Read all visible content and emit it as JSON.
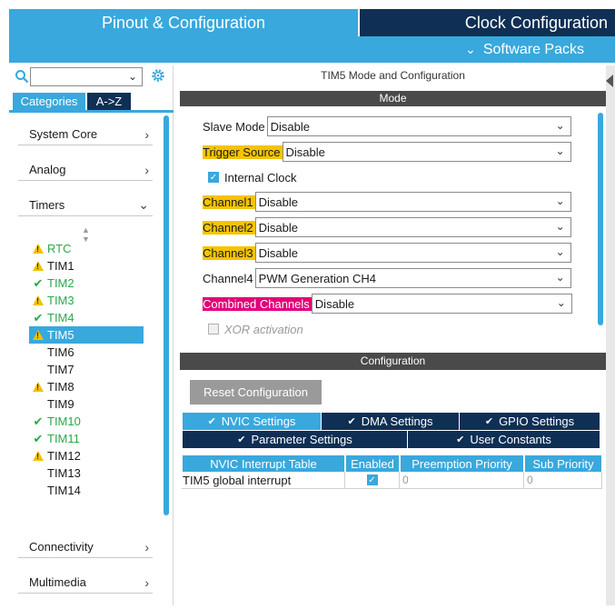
{
  "header": {
    "tab_pinout": "Pinout & Configuration",
    "tab_clock": "Clock Configuration",
    "software_packs": "Software Packs"
  },
  "left": {
    "search_value": "",
    "tab_categories": "Categories",
    "tab_az": "A->Z",
    "categories": [
      {
        "label": "System Core",
        "arrow": ">"
      },
      {
        "label": "Analog",
        "arrow": ">"
      },
      {
        "label": "Timers",
        "arrow": "v"
      },
      {
        "label": "Connectivity",
        "arrow": ">"
      },
      {
        "label": "Multimedia",
        "arrow": ">"
      }
    ],
    "timers": [
      {
        "label": "RTC",
        "status": "warn",
        "color": "green"
      },
      {
        "label": "TIM1",
        "status": "warn",
        "color": "black"
      },
      {
        "label": "TIM2",
        "status": "check",
        "color": "green"
      },
      {
        "label": "TIM3",
        "status": "warn",
        "color": "green"
      },
      {
        "label": "TIM4",
        "status": "check",
        "color": "green"
      },
      {
        "label": "TIM5",
        "status": "warn",
        "color": "selected"
      },
      {
        "label": "TIM6",
        "status": "none",
        "color": "black"
      },
      {
        "label": "TIM7",
        "status": "none",
        "color": "black"
      },
      {
        "label": "TIM8",
        "status": "warn",
        "color": "black"
      },
      {
        "label": "TIM9",
        "status": "none",
        "color": "black"
      },
      {
        "label": "TIM10",
        "status": "check",
        "color": "green"
      },
      {
        "label": "TIM11",
        "status": "check",
        "color": "green"
      },
      {
        "label": "TIM12",
        "status": "warn",
        "color": "black"
      },
      {
        "label": "TIM13",
        "status": "none",
        "color": "black"
      },
      {
        "label": "TIM14",
        "status": "none",
        "color": "black"
      }
    ]
  },
  "main": {
    "title": "TIM5 Mode and Configuration",
    "mode_header": "Mode",
    "mode": {
      "slave_mode_label": "Slave Mode",
      "slave_mode_value": "Disable",
      "trigger_source_label": "Trigger Source",
      "trigger_source_value": "Disable",
      "internal_clock_label": "Internal Clock",
      "channel1_label": "Channel1",
      "channel1_value": "Disable",
      "channel2_label": "Channel2",
      "channel2_value": "Disable",
      "channel3_label": "Channel3",
      "channel3_value": "Disable",
      "channel4_label": "Channel4",
      "channel4_value": "PWM Generation CH4",
      "combined_label": "Combined Channels",
      "combined_value": "Disable",
      "xor_label": "XOR activation"
    },
    "config_header": "Configuration",
    "reset_button": "Reset Configuration",
    "settings_tabs": {
      "nvic": "NVIC Settings",
      "dma": "DMA Settings",
      "gpio": "GPIO Settings",
      "parameter": "Parameter Settings",
      "user_constants": "User Constants"
    },
    "nvic_table": {
      "headers": [
        "NVIC Interrupt Table",
        "Enabled",
        "Preemption Priority",
        "Sub Priority"
      ],
      "rows": [
        {
          "name": "TIM5 global interrupt",
          "enabled": true,
          "preemption": "0",
          "sub": "0"
        }
      ]
    }
  },
  "colors": {
    "accent": "#39a8dd",
    "navy": "#0f2f55",
    "warning": "#f5c400",
    "conflict": "#e2007a",
    "ok": "#2aa84a"
  }
}
